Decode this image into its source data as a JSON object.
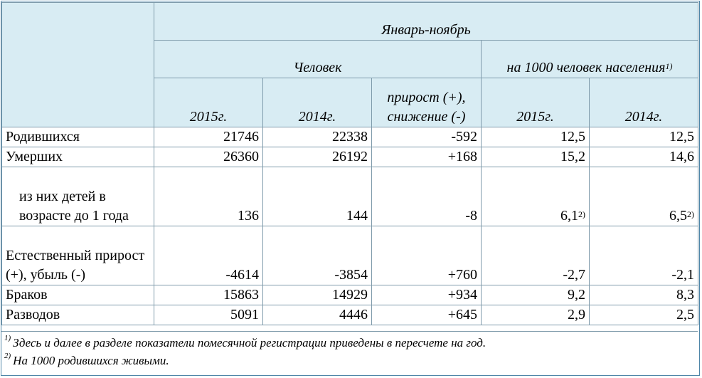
{
  "header": {
    "period": "Январь-ноябрь",
    "group_people": "Человек",
    "group_per1000": "на 1000 человек населения",
    "group_per1000_note": "1)",
    "cols": [
      "2015г.",
      "2014г.",
      "прирост (+), снижение (-)",
      "2015г.",
      "2014г."
    ]
  },
  "rows": [
    {
      "label": "Родившихся",
      "v2015": "21746",
      "v2014": "22338",
      "change": "-592",
      "r2015": "12,5",
      "r2014": "12,5"
    },
    {
      "label": "Умерших",
      "v2015": "26360",
      "v2014": "26192",
      "change": "+168",
      "r2015": "15,2",
      "r2014": "14,6"
    },
    {
      "label": "из них детей в возрасте до 1 года",
      "v2015": "136",
      "v2014": "144",
      "change": "-8",
      "r2015": "6,1",
      "r2015_note": "2)",
      "r2014": "6,5",
      "r2014_note": "2)"
    },
    {
      "label": "Естественный прирост (+), убыль (-)",
      "v2015": "-4614",
      "v2014": "-3854",
      "change": "+760",
      "r2015": "-2,7",
      "r2014": "-2,1"
    },
    {
      "label": "Браков",
      "v2015": "15863",
      "v2014": "14929",
      "change": "+934",
      "r2015": "9,2",
      "r2014": "8,3"
    },
    {
      "label": "Разводов",
      "v2015": "5091",
      "v2014": "4446",
      "change": "+645",
      "r2015": "2,9",
      "r2014": "2,5"
    }
  ],
  "footnotes": [
    {
      "mark": "1)",
      "text": "Здесь и далее в разделе показатели помесячной регистрации приведены в пересчете на год."
    },
    {
      "mark": "2)",
      "text": "На 1000 родившихся живыми."
    }
  ]
}
